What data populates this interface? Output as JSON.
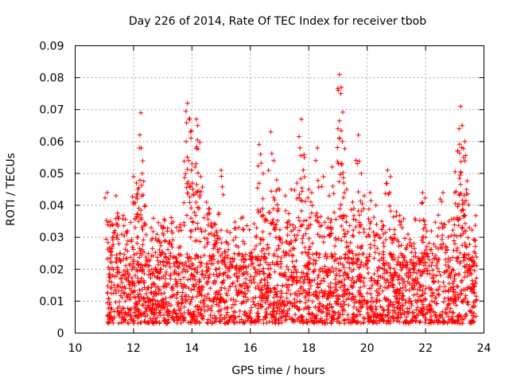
{
  "chart_data": {
    "type": "scatter",
    "title": "Day 226 of 2014, Rate Of TEC Index for receiver tbob",
    "xlabel": "GPS time / hours",
    "ylabel": "ROTI / TECUs",
    "xlim": [
      10,
      24
    ],
    "ylim": [
      0,
      0.09
    ],
    "grid": true,
    "marker": "+",
    "x_ticks": [
      10,
      12,
      14,
      16,
      18,
      20,
      22,
      24
    ],
    "x_tick_labels": [
      "10",
      "12",
      "14",
      "16",
      "18",
      "20",
      "22",
      "24"
    ],
    "y_ticks": [
      0,
      0.01,
      0.02,
      0.03,
      0.04,
      0.05,
      0.06,
      0.07,
      0.08,
      0.09
    ],
    "y_tick_labels": [
      "0",
      "0.01",
      "0.02",
      "0.03",
      "0.04",
      "0.05",
      "0.06",
      "0.07",
      "0.08",
      "0.09"
    ],
    "series": [
      {
        "name": "ROTI",
        "color": "#ff0000",
        "x_range": [
          11.1,
          23.75
        ],
        "points": [
          [
            11.1,
            0.044
          ],
          [
            11.2,
            0.035
          ],
          [
            11.4,
            0.043
          ],
          [
            11.5,
            0.036
          ],
          [
            11.6,
            0.031
          ],
          [
            11.8,
            0.032
          ],
          [
            12.0,
            0.049
          ],
          [
            12.1,
            0.047
          ],
          [
            12.15,
            0.045
          ],
          [
            12.2,
            0.058
          ],
          [
            12.25,
            0.069
          ],
          [
            12.3,
            0.05
          ],
          [
            12.4,
            0.04
          ],
          [
            12.6,
            0.033
          ],
          [
            12.8,
            0.031
          ],
          [
            13.0,
            0.033
          ],
          [
            13.3,
            0.032
          ],
          [
            13.6,
            0.034
          ],
          [
            13.8,
            0.06
          ],
          [
            13.85,
            0.072
          ],
          [
            13.9,
            0.067
          ],
          [
            13.95,
            0.063
          ],
          [
            14.0,
            0.053
          ],
          [
            14.1,
            0.052
          ],
          [
            14.15,
            0.067
          ],
          [
            14.2,
            0.065
          ],
          [
            14.3,
            0.049
          ],
          [
            14.5,
            0.041
          ],
          [
            14.6,
            0.039
          ],
          [
            14.8,
            0.034
          ],
          [
            15.0,
            0.051
          ],
          [
            15.2,
            0.032
          ],
          [
            15.5,
            0.03
          ],
          [
            15.8,
            0.028
          ],
          [
            16.0,
            0.025
          ],
          [
            16.2,
            0.03
          ],
          [
            16.3,
            0.059
          ],
          [
            16.35,
            0.056
          ],
          [
            16.5,
            0.035
          ],
          [
            16.7,
            0.063
          ],
          [
            16.8,
            0.054
          ],
          [
            16.9,
            0.048
          ],
          [
            17.0,
            0.045
          ],
          [
            17.2,
            0.043
          ],
          [
            17.4,
            0.045
          ],
          [
            17.6,
            0.047
          ],
          [
            17.7,
            0.058
          ],
          [
            17.75,
            0.067
          ],
          [
            17.85,
            0.055
          ],
          [
            18.0,
            0.045
          ],
          [
            18.1,
            0.044
          ],
          [
            18.3,
            0.058
          ],
          [
            18.5,
            0.049
          ],
          [
            18.7,
            0.043
          ],
          [
            18.8,
            0.052
          ],
          [
            19.0,
            0.064
          ],
          [
            19.05,
            0.081
          ],
          [
            19.1,
            0.075
          ],
          [
            19.15,
            0.06
          ],
          [
            19.2,
            0.047
          ],
          [
            19.3,
            0.045
          ],
          [
            19.5,
            0.041
          ],
          [
            19.7,
            0.062
          ],
          [
            19.8,
            0.05
          ],
          [
            19.9,
            0.043
          ],
          [
            20.1,
            0.044
          ],
          [
            20.3,
            0.04
          ],
          [
            20.5,
            0.035
          ],
          [
            20.7,
            0.051
          ],
          [
            20.8,
            0.049
          ],
          [
            21.0,
            0.038
          ],
          [
            21.2,
            0.033
          ],
          [
            21.4,
            0.031
          ],
          [
            21.6,
            0.028
          ],
          [
            21.9,
            0.044
          ],
          [
            22.0,
            0.03
          ],
          [
            22.2,
            0.032
          ],
          [
            22.5,
            0.042
          ],
          [
            22.6,
            0.044
          ],
          [
            22.8,
            0.035
          ],
          [
            23.0,
            0.044
          ],
          [
            23.1,
            0.057
          ],
          [
            23.15,
            0.064
          ],
          [
            23.2,
            0.071
          ],
          [
            23.25,
            0.065
          ],
          [
            23.3,
            0.055
          ],
          [
            23.35,
            0.06
          ],
          [
            23.4,
            0.045
          ],
          [
            23.5,
            0.033
          ],
          [
            23.7,
            0.025
          ]
        ],
        "dense_band": {
          "typical_min": 0.003,
          "typical_max": 0.025,
          "typical_center": 0.012,
          "note": "thousands of points forming a dense band between roughly 0.002 and 0.03 across 11.1–23.75 h"
        }
      }
    ]
  }
}
